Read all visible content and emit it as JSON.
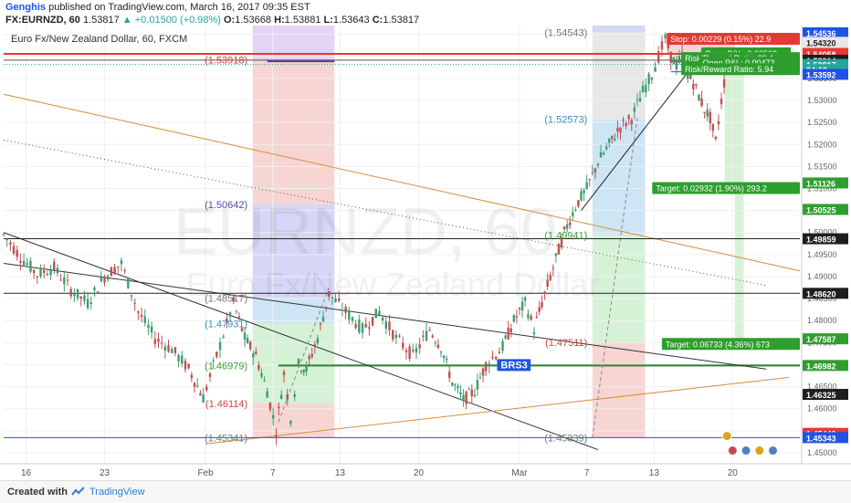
{
  "header": {
    "author": "Genghis",
    "published_text": "published on TradingView.com, March 16, 2017 09:35 EST",
    "symbol": "FX:EURNZD, 60",
    "last": "1.53817",
    "change": "+0.01500 (+0.98%)",
    "open_label": "O:",
    "open": "1.53668",
    "high_label": "H:",
    "high": "1.53881",
    "low_label": "L:",
    "low": "1.53643",
    "close_label": "C:",
    "close": "1.53817"
  },
  "footer": {
    "created_with": "Created with",
    "brand": "TradingView"
  },
  "chart_data": {
    "type": "candlestick",
    "title": "Euro Fx/New Zealand Dollar, 60, FXCM",
    "watermark_symbol": "EURNZD, 60",
    "watermark_name": "Euro Fx/New Zealand Dollar",
    "ylim": [
      1.4475,
      1.547
    ],
    "x_range_days": [
      14,
      85
    ],
    "x_ticks": [
      {
        "label": "16",
        "day": 16
      },
      {
        "label": "23",
        "day": 23
      },
      {
        "label": "Feb",
        "day": 32
      },
      {
        "label": "7",
        "day": 38
      },
      {
        "label": "13",
        "day": 44
      },
      {
        "label": "20",
        "day": 51
      },
      {
        "label": "Mar",
        "day": 60
      },
      {
        "label": "7",
        "day": 66
      },
      {
        "label": "13",
        "day": 72
      },
      {
        "label": "20",
        "day": 79
      }
    ],
    "y_ticks": [
      "1.54500",
      "1.54000",
      "1.53500",
      "1.53000",
      "1.52500",
      "1.52000",
      "1.51500",
      "1.51000",
      "1.50500",
      "1.50000",
      "1.49500",
      "1.49000",
      "1.48500",
      "1.48000",
      "1.47500",
      "1.47000",
      "1.46500",
      "1.46000",
      "1.45500",
      "1.45000"
    ],
    "price_labels": [
      {
        "text": "1.54536",
        "value": 1.54536,
        "bg": "#1e53e5",
        "fg": "#ffffff"
      },
      {
        "text": "1.54311",
        "value": 1.54311,
        "bg": "#e53935",
        "fg": "#ffffff"
      },
      {
        "text": "1.54320",
        "value": 1.5432,
        "bg": "#e8e8e8",
        "fg": "#222222"
      },
      {
        "text": "1.54060",
        "value": 1.5406,
        "bg": "#e53935",
        "fg": "#ffffff"
      },
      {
        "text": "1.54058",
        "value": 1.54058,
        "bg": "#e53935",
        "fg": "#ffffff"
      },
      {
        "text": "1.53914",
        "value": 1.53914,
        "bg": "#1e1e1e",
        "fg": "#ffffff"
      },
      {
        "text": "1.53817",
        "value": 1.53817,
        "bg": "#26a69a",
        "fg": "#ffffff"
      },
      {
        "text": "24:19",
        "value": 1.537,
        "bg": "#26a69a",
        "fg": "#ffffff"
      },
      {
        "text": "1.53592",
        "value": 1.53592,
        "bg": "#1e53e5",
        "fg": "#ffffff"
      },
      {
        "text": "1.51126",
        "value": 1.51126,
        "bg": "#2e9e2e",
        "fg": "#ffffff"
      },
      {
        "text": "1.50525",
        "value": 1.50525,
        "bg": "#2e9e2e",
        "fg": "#ffffff"
      },
      {
        "text": "1.49859",
        "value": 1.49859,
        "bg": "#1e1e1e",
        "fg": "#ffffff"
      },
      {
        "text": "1.48620",
        "value": 1.4862,
        "bg": "#1e1e1e",
        "fg": "#ffffff"
      },
      {
        "text": "1.47587",
        "value": 1.47587,
        "bg": "#2e9e2e",
        "fg": "#ffffff"
      },
      {
        "text": "1.46982",
        "value": 1.46982,
        "bg": "#2e9e2e",
        "fg": "#ffffff"
      },
      {
        "text": "1.46325",
        "value": 1.46325,
        "bg": "#1e1e1e",
        "fg": "#ffffff"
      },
      {
        "text": "1.45440",
        "value": 1.4544,
        "bg": "#e53935",
        "fg": "#ffffff"
      },
      {
        "text": "1.45343",
        "value": 1.45343,
        "bg": "#1e53e5",
        "fg": "#ffffff"
      }
    ],
    "horizontal_levels": [
      {
        "value": 1.54058,
        "color": "#e53935",
        "width": 2
      },
      {
        "value": 1.53914,
        "color": "#555555",
        "width": 1
      },
      {
        "value": 1.53817,
        "color": "#26a69a",
        "width": 1,
        "dotted": true
      },
      {
        "value": 1.49859,
        "color": "#222222",
        "width": 1
      },
      {
        "value": 1.4862,
        "color": "#222222",
        "width": 1
      },
      {
        "value": 1.45343,
        "color": "#1e53e5",
        "width": 1
      }
    ],
    "segments": [
      {
        "x1": 38.5,
        "y1": 1.46982,
        "x2": 85,
        "y2": 1.46982,
        "color": "#2e7d32",
        "width": 2
      },
      {
        "x1": 14,
        "y1": 1.5,
        "x2": 67,
        "y2": 1.4507,
        "color": "#333333",
        "width": 1
      },
      {
        "x1": 14,
        "y1": 1.493,
        "x2": 82,
        "y2": 1.469,
        "color": "#333333",
        "width": 1
      },
      {
        "x1": 14,
        "y1": 1.5314,
        "x2": 85,
        "y2": 1.4913,
        "color": "#d98c3a",
        "width": 1
      },
      {
        "x1": 32,
        "y1": 1.452,
        "x2": 84,
        "y2": 1.4671,
        "color": "#d98c3a",
        "width": 1
      },
      {
        "x1": 14,
        "y1": 1.521,
        "x2": 82,
        "y2": 1.488,
        "color": "#555555",
        "width": 1,
        "dotted": true
      },
      {
        "x1": 65.5,
        "y1": 1.505,
        "x2": 75.5,
        "y2": 1.538,
        "color": "#222222",
        "width": 1
      },
      {
        "x1": 38.5,
        "y1": 1.457,
        "x2": 43,
        "y2": 1.4875,
        "color": "#888888",
        "width": 1,
        "dashed": true
      },
      {
        "x1": 66.5,
        "y1": 1.4534,
        "x2": 70.5,
        "y2": 1.526,
        "color": "#888888",
        "width": 1,
        "dashed": true
      },
      {
        "x1": 37.5,
        "y1": 1.5389,
        "x2": 43.5,
        "y2": 1.5389,
        "color": "#5e35b1",
        "width": 2
      },
      {
        "x1": 73.5,
        "y1": 1.5389,
        "x2": 76.5,
        "y2": 1.5389,
        "color": "#e53935",
        "width": 2
      },
      {
        "x1": 73.5,
        "y1": 1.5365,
        "x2": 78.5,
        "y2": 1.5365,
        "color": "#1e53e5",
        "width": 1
      }
    ],
    "range_boxes": [
      {
        "x1": 36.2,
        "x2": 43.5,
        "y1": 1.53918,
        "y2": 1.547,
        "color": "#d9c6f2"
      },
      {
        "x1": 36.2,
        "x2": 43.5,
        "y1": 1.50642,
        "y2": 1.53918,
        "color": "#f4c7c3"
      },
      {
        "x1": 36.2,
        "x2": 43.5,
        "y1": 1.48517,
        "y2": 1.50642,
        "color": "#c8c8f4"
      },
      {
        "x1": 36.2,
        "x2": 43.5,
        "y1": 1.47931,
        "y2": 1.48517,
        "color": "#bcdcf2"
      },
      {
        "x1": 36.2,
        "x2": 43.5,
        "y1": 1.46979,
        "y2": 1.47931,
        "color": "#c8eec8"
      },
      {
        "x1": 36.2,
        "x2": 43.5,
        "y1": 1.46114,
        "y2": 1.46979,
        "color": "#c8eec8"
      },
      {
        "x1": 36.2,
        "x2": 43.5,
        "y1": 1.45341,
        "y2": 1.46114,
        "color": "#f4c7c3"
      },
      {
        "x1": 66.5,
        "x2": 71.2,
        "y1": 1.54543,
        "y2": 1.547,
        "color": "#c8c8f4"
      },
      {
        "x1": 66.5,
        "x2": 71.2,
        "y1": 1.52573,
        "y2": 1.54543,
        "color": "#e0e0e0"
      },
      {
        "x1": 66.5,
        "x2": 71.2,
        "y1": 1.49941,
        "y2": 1.52573,
        "color": "#bcdcf2"
      },
      {
        "x1": 66.5,
        "x2": 71.2,
        "y1": 1.47511,
        "y2": 1.49941,
        "color": "#c8eec8"
      },
      {
        "x1": 66.5,
        "x2": 71.2,
        "y1": 1.45339,
        "y2": 1.47511,
        "color": "#f4c7c3"
      },
      {
        "x1": 73.3,
        "x2": 79.2,
        "y1": 1.54058,
        "y2": 1.54311,
        "color": "#f4c7c3"
      },
      {
        "x1": 73.3,
        "x2": 79.2,
        "y1": 1.53914,
        "y2": 1.54058,
        "color": "#c8eec8"
      },
      {
        "x1": 78.3,
        "x2": 79.2,
        "y1": 1.51126,
        "y2": 1.53914,
        "color": "#c8eec8"
      },
      {
        "x1": 79.2,
        "x2": 80.0,
        "y1": 1.47587,
        "y2": 1.53914,
        "color": "#c8eec8"
      }
    ],
    "range_labels": [
      {
        "text": "(1.53918)",
        "x": 36,
        "y": 1.53918,
        "color": "#d04545"
      },
      {
        "text": "(1.50642)",
        "x": 36,
        "y": 1.50642,
        "color": "#4a4aa8"
      },
      {
        "text": "(1.48517)",
        "x": 36,
        "y": 1.48517,
        "color": "#777777"
      },
      {
        "text": "(1.47931)",
        "x": 36,
        "y": 1.47931,
        "color": "#3a8ec0"
      },
      {
        "text": "(1.46979)",
        "x": 36,
        "y": 1.46979,
        "color": "#3aa03a"
      },
      {
        "text": "(1.46114)",
        "x": 36,
        "y": 1.46114,
        "color": "#d04545"
      },
      {
        "text": "(1.45341)",
        "x": 36,
        "y": 1.45341,
        "color": "#777777"
      },
      {
        "text": "(1.54543)",
        "x": 66.3,
        "y": 1.54543,
        "color": "#777777"
      },
      {
        "text": "(1.52573)",
        "x": 66.3,
        "y": 1.52573,
        "color": "#3a8ec0"
      },
      {
        "text": "(1.49941)",
        "x": 66.3,
        "y": 1.49941,
        "color": "#3aa03a"
      },
      {
        "text": "(1.47511)",
        "x": 66.3,
        "y": 1.47511,
        "color": "#d04545"
      },
      {
        "text": "(1.45339)",
        "x": 66.3,
        "y": 1.45339,
        "color": "#777777"
      }
    ],
    "annotations": [
      {
        "text": "Stop: 0.00229 (0.15%) 22.9",
        "x": 73.6,
        "y": 1.5439,
        "bg": "#e53935",
        "fg": "#ffffff"
      },
      {
        "text": "Open P&L: 0.00503",
        "x": 76.2,
        "y": 1.5406,
        "bg": "#2e9e2e",
        "fg": "#ffffff"
      },
      {
        "text": "Risk/Reward Ratio: 29.4",
        "x": 75.7,
        "y": 1.5395,
        "bg": "#2e9e2e",
        "fg": "#ffffff"
      },
      {
        "text": "Open P&L: 0.00473",
        "x": 76.0,
        "y": 1.5385,
        "bg": "#2e9e2e",
        "fg": "#ffffff"
      },
      {
        "text": "Risk/Reward Ratio: 5.94",
        "x": 75.0,
        "y": 1.537,
        "bg": "#2e9e2e",
        "fg": "#ffffff"
      },
      {
        "text": "Target: 0.02932 (1.90%) 293.2",
        "x": 74.7,
        "y": 1.51,
        "bg": "#2e9e2e",
        "fg": "#ffffff"
      },
      {
        "text": "Target: 0.06733 (4.36%) 673",
        "x": 76.0,
        "y": 1.4746,
        "bg": "#2e9e2e",
        "fg": "#ffffff"
      },
      {
        "text": "BRS3",
        "x": 58.0,
        "y": 1.46982,
        "bg": "#1e53e5",
        "fg": "#ffffff",
        "bold": true
      }
    ],
    "path_points": [
      [
        14.0,
        1.4995
      ],
      [
        15.5,
        1.4945
      ],
      [
        17.0,
        1.4905
      ],
      [
        18.5,
        1.492
      ],
      [
        20.0,
        1.487
      ],
      [
        21.5,
        1.484
      ],
      [
        23.0,
        1.49
      ],
      [
        24.5,
        1.493
      ],
      [
        26.0,
        1.482
      ],
      [
        27.5,
        1.476
      ],
      [
        29.0,
        1.4735
      ],
      [
        30.5,
        1.469
      ],
      [
        31.8,
        1.4625
      ],
      [
        33.0,
        1.472
      ],
      [
        34.5,
        1.484
      ],
      [
        35.5,
        1.476
      ],
      [
        36.5,
        1.472
      ],
      [
        37.5,
        1.464
      ],
      [
        38.3,
        1.455
      ],
      [
        39.0,
        1.468
      ],
      [
        39.6,
        1.458
      ],
      [
        40.3,
        1.47
      ],
      [
        41.0,
        1.469
      ],
      [
        42.0,
        1.476
      ],
      [
        43.0,
        1.486
      ],
      [
        44.5,
        1.482
      ],
      [
        46.0,
        1.478
      ],
      [
        47.5,
        1.482
      ],
      [
        49.0,
        1.476
      ],
      [
        50.5,
        1.472
      ],
      [
        52.0,
        1.478
      ],
      [
        53.0,
        1.474
      ],
      [
        54.0,
        1.466
      ],
      [
        55.0,
        1.462
      ],
      [
        56.0,
        1.464
      ],
      [
        57.0,
        1.47
      ],
      [
        58.5,
        1.474
      ],
      [
        59.5,
        1.48
      ],
      [
        60.5,
        1.484
      ],
      [
        61.3,
        1.478
      ],
      [
        62.0,
        1.484
      ],
      [
        63.0,
        1.492
      ],
      [
        64.0,
        1.5
      ],
      [
        65.0,
        1.506
      ],
      [
        66.0,
        1.51
      ],
      [
        67.0,
        1.516
      ],
      [
        68.0,
        1.52
      ],
      [
        69.0,
        1.524
      ],
      [
        70.0,
        1.526
      ],
      [
        71.0,
        1.532
      ],
      [
        71.8,
        1.536
      ],
      [
        72.4,
        1.54
      ],
      [
        73.0,
        1.544
      ],
      [
        73.5,
        1.54
      ],
      [
        74.0,
        1.538
      ],
      [
        74.5,
        1.54
      ],
      [
        75.0,
        1.536
      ],
      [
        75.5,
        1.534
      ],
      [
        76.0,
        1.531
      ],
      [
        76.5,
        1.528
      ],
      [
        77.0,
        1.526
      ],
      [
        77.5,
        1.5205
      ],
      [
        78.0,
        1.53
      ],
      [
        78.5,
        1.5382
      ]
    ],
    "bottom_icons": [
      {
        "x": 78.5,
        "y": 1.4538,
        "color": "#e0a020"
      },
      {
        "x": 79.0,
        "y": 1.4505,
        "color": "#c0504d"
      },
      {
        "x": 80.2,
        "y": 1.4505,
        "color": "#4f81bd"
      },
      {
        "x": 81.4,
        "y": 1.4505,
        "color": "#e0a020"
      },
      {
        "x": 82.6,
        "y": 1.4505,
        "color": "#4f81bd"
      }
    ]
  }
}
